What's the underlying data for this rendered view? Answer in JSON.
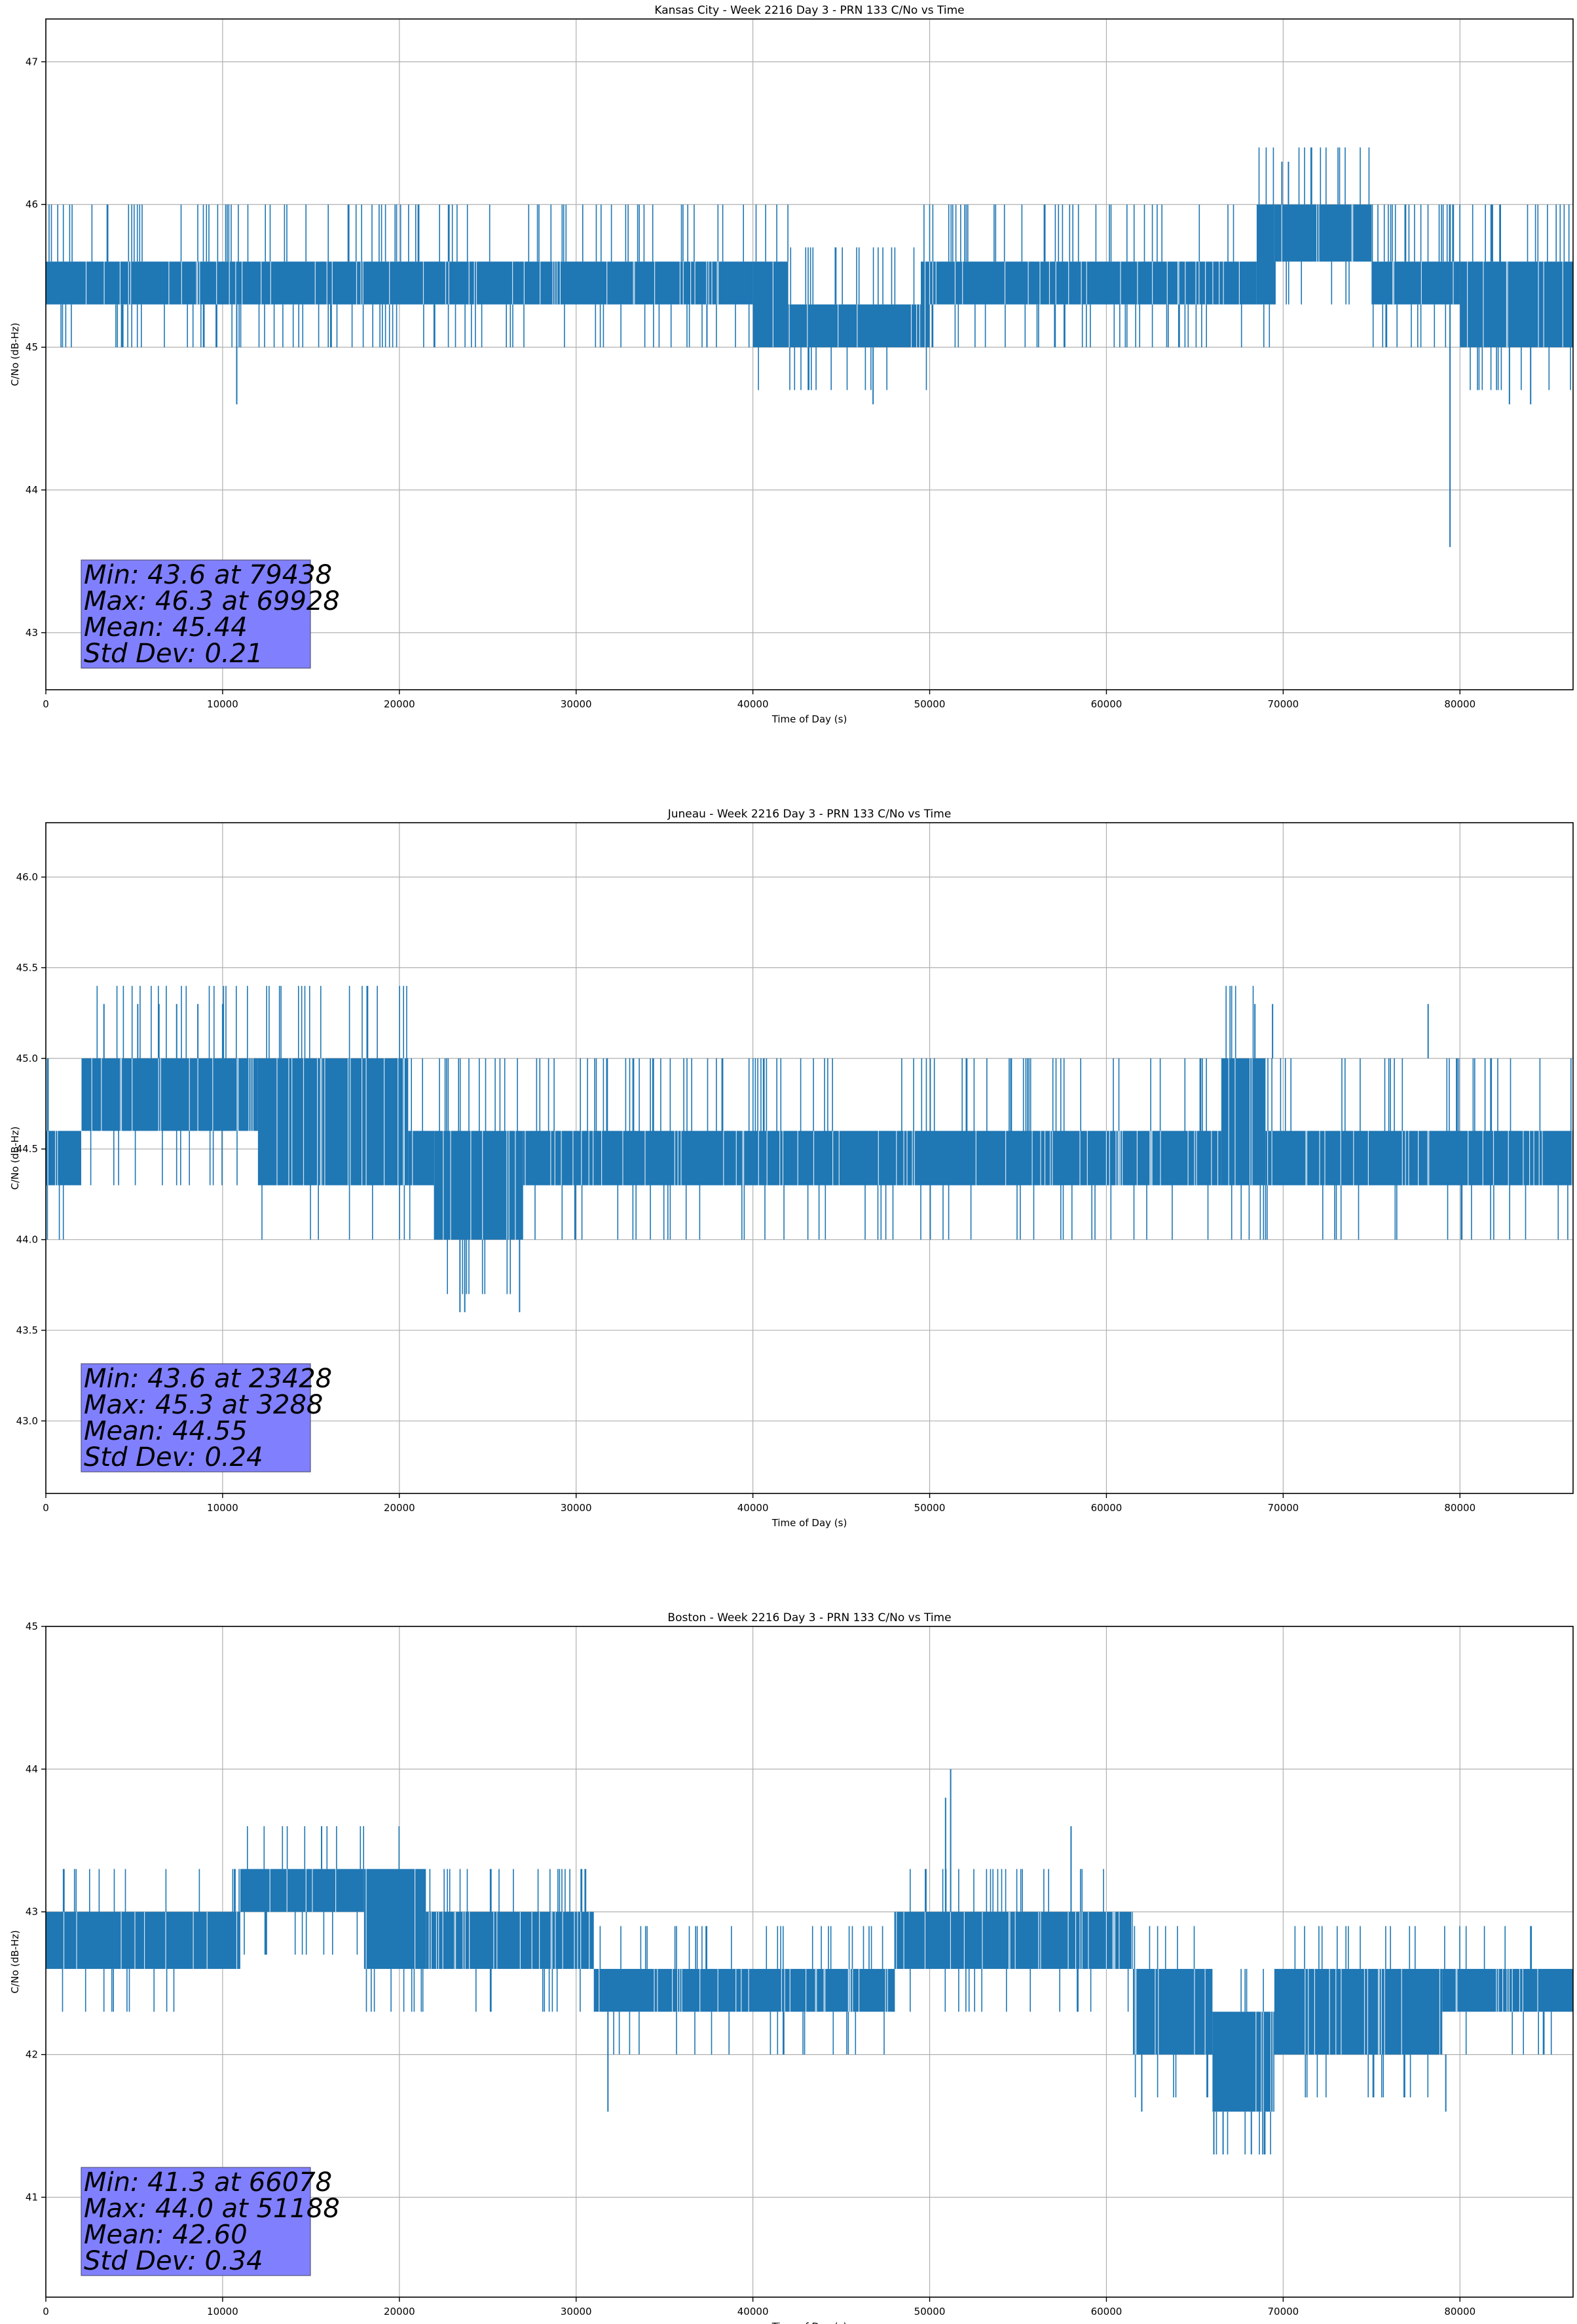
{
  "chart_data": [
    {
      "type": "line",
      "title": "Kansas City - Week 2216 Day 3 - PRN 133 C/No vs Time",
      "xlabel": "Time of Day (s)",
      "ylabel": "C/No (dB-Hz)",
      "xlim": [
        0,
        86400
      ],
      "ylim": [
        42.6,
        47.3
      ],
      "xticks": [
        0,
        10000,
        20000,
        30000,
        40000,
        50000,
        60000,
        70000,
        80000
      ],
      "yticks": [
        43,
        44,
        45,
        46,
        47
      ],
      "ytick_labels": [
        "43",
        "44",
        "45",
        "46",
        "47"
      ],
      "grid": true,
      "color": "#1f77b4",
      "bands": [
        {
          "x0": 0,
          "x1": 40000,
          "lo": 45.3,
          "hi": 45.6
        },
        {
          "x0": 40000,
          "x1": 42000,
          "lo": 45.0,
          "hi": 45.6
        },
        {
          "x0": 42000,
          "x1": 49500,
          "lo": 45.0,
          "hi": 45.3
        },
        {
          "x0": 49500,
          "x1": 50000,
          "lo": 45.0,
          "hi": 45.6
        },
        {
          "x0": 50000,
          "x1": 68500,
          "lo": 45.3,
          "hi": 45.6
        },
        {
          "x0": 68500,
          "x1": 69500,
          "lo": 45.3,
          "hi": 46.0
        },
        {
          "x0": 69500,
          "x1": 75000,
          "lo": 45.6,
          "hi": 46.0
        },
        {
          "x0": 75000,
          "x1": 80000,
          "lo": 45.3,
          "hi": 45.6
        },
        {
          "x0": 80000,
          "x1": 86400,
          "lo": 45.0,
          "hi": 45.6
        }
      ],
      "noise": {
        "up": [
          45.6,
          46.0
        ],
        "down": [
          45.3,
          45.0
        ],
        "up_density": 0.35,
        "down_density": 0.3
      },
      "spikes": [
        {
          "x": 10800,
          "y0": 45.3,
          "y1": 44.6
        },
        {
          "x": 46800,
          "y0": 45.0,
          "y1": 44.6
        },
        {
          "x": 79438,
          "y0": 45.3,
          "y1": 43.6
        },
        {
          "x": 69928,
          "y0": 46.0,
          "y1": 46.3
        },
        {
          "x": 70300,
          "y0": 46.0,
          "y1": 46.3
        },
        {
          "x": 37400,
          "y0": 45.3,
          "y1": 45.0
        },
        {
          "x": 82800,
          "y0": 45.0,
          "y1": 44.6
        },
        {
          "x": 84000,
          "y0": 45.0,
          "y1": 44.6
        }
      ],
      "stats": [
        "Min: 43.6 at 79438",
        "Max: 46.3 at 69928",
        "Mean: 45.44",
        "Std Dev: 0.21"
      ]
    },
    {
      "type": "line",
      "title": "Juneau - Week 2216 Day 3 - PRN 133 C/No vs Time",
      "xlabel": "Time of Day (s)",
      "ylabel": "C/No (dB-Hz)",
      "xlim": [
        0,
        86400
      ],
      "ylim": [
        42.6,
        46.3
      ],
      "xticks": [
        0,
        10000,
        20000,
        30000,
        40000,
        50000,
        60000,
        70000,
        80000
      ],
      "yticks": [
        43.0,
        43.5,
        44.0,
        44.5,
        45.0,
        45.5,
        46.0
      ],
      "ytick_labels": [
        "43.0",
        "43.5",
        "44.0",
        "44.5",
        "45.0",
        "45.5",
        "46.0"
      ],
      "grid": true,
      "color": "#1f77b4",
      "bands": [
        {
          "x0": 0,
          "x1": 2000,
          "lo": 44.3,
          "hi": 44.6
        },
        {
          "x0": 2000,
          "x1": 12000,
          "lo": 44.6,
          "hi": 45.0
        },
        {
          "x0": 12000,
          "x1": 20500,
          "lo": 44.3,
          "hi": 45.0
        },
        {
          "x0": 20500,
          "x1": 22000,
          "lo": 44.3,
          "hi": 44.6
        },
        {
          "x0": 22000,
          "x1": 27000,
          "lo": 44.0,
          "hi": 44.6
        },
        {
          "x0": 27000,
          "x1": 66500,
          "lo": 44.3,
          "hi": 44.6
        },
        {
          "x0": 66500,
          "x1": 69000,
          "lo": 44.3,
          "hi": 45.0
        },
        {
          "x0": 69000,
          "x1": 86400,
          "lo": 44.3,
          "hi": 44.6
        }
      ],
      "noise": {
        "up": [
          44.6,
          45.0
        ],
        "down": [
          44.3,
          44.0
        ],
        "up_density": 0.3,
        "down_density": 0.2
      },
      "spikes": [
        {
          "x": 23428,
          "y0": 44.0,
          "y1": 43.6
        },
        {
          "x": 23700,
          "y0": 44.0,
          "y1": 43.6
        },
        {
          "x": 26800,
          "y0": 44.0,
          "y1": 43.6
        },
        {
          "x": 3288,
          "y0": 45.0,
          "y1": 45.3
        },
        {
          "x": 5200,
          "y0": 45.0,
          "y1": 45.3
        },
        {
          "x": 6400,
          "y0": 45.0,
          "y1": 45.3
        },
        {
          "x": 7400,
          "y0": 45.0,
          "y1": 45.3
        },
        {
          "x": 8600,
          "y0": 45.0,
          "y1": 45.3
        },
        {
          "x": 10000,
          "y0": 45.0,
          "y1": 45.3
        },
        {
          "x": 68400,
          "y0": 45.0,
          "y1": 45.3
        },
        {
          "x": 69400,
          "y0": 45.0,
          "y1": 45.3
        },
        {
          "x": 78200,
          "y0": 45.0,
          "y1": 45.3
        }
      ],
      "stats": [
        "Min: 43.6 at 23428",
        "Max: 45.3 at 3288",
        "Mean: 44.55",
        "Std Dev: 0.24"
      ]
    },
    {
      "type": "line",
      "title": "Boston - Week 2216 Day 3 - PRN 133 C/No vs Time",
      "xlabel": "Time of Day (s)",
      "ylabel": "C/No (dB-Hz)",
      "xlim": [
        0,
        86400
      ],
      "ylim": [
        40.3,
        45.0
      ],
      "xticks": [
        0,
        10000,
        20000,
        30000,
        40000,
        50000,
        60000,
        70000,
        80000
      ],
      "yticks": [
        41,
        42,
        43,
        44,
        45
      ],
      "ytick_labels": [
        "41",
        "42",
        "43",
        "44",
        "45"
      ],
      "grid": true,
      "color": "#1f77b4",
      "bands": [
        {
          "x0": 0,
          "x1": 11000,
          "lo": 42.6,
          "hi": 43.0
        },
        {
          "x0": 11000,
          "x1": 18000,
          "lo": 43.0,
          "hi": 43.3
        },
        {
          "x0": 18000,
          "x1": 21500,
          "lo": 42.6,
          "hi": 43.3
        },
        {
          "x0": 21500,
          "x1": 31000,
          "lo": 42.6,
          "hi": 43.0
        },
        {
          "x0": 31000,
          "x1": 48000,
          "lo": 42.3,
          "hi": 42.6
        },
        {
          "x0": 48000,
          "x1": 61500,
          "lo": 42.6,
          "hi": 43.0
        },
        {
          "x0": 61500,
          "x1": 66000,
          "lo": 42.0,
          "hi": 42.6
        },
        {
          "x0": 66000,
          "x1": 69500,
          "lo": 41.6,
          "hi": 42.3
        },
        {
          "x0": 69500,
          "x1": 79000,
          "lo": 42.0,
          "hi": 42.6
        },
        {
          "x0": 79000,
          "x1": 86400,
          "lo": 42.3,
          "hi": 42.6
        }
      ],
      "noise": {
        "up": [
          43.0,
          43.3
        ],
        "down": [
          42.6,
          42.3
        ],
        "up_density": 0.25,
        "down_density": 0.25
      },
      "spikes": [
        {
          "x": 51188,
          "y0": 43.0,
          "y1": 44.0
        },
        {
          "x": 50900,
          "y0": 43.0,
          "y1": 43.8
        },
        {
          "x": 15600,
          "y0": 43.3,
          "y1": 43.6
        },
        {
          "x": 58000,
          "y0": 43.0,
          "y1": 43.6
        },
        {
          "x": 31800,
          "y0": 42.3,
          "y1": 41.6
        },
        {
          "x": 66078,
          "y0": 41.6,
          "y1": 41.3
        },
        {
          "x": 66600,
          "y0": 41.6,
          "y1": 41.3
        },
        {
          "x": 68200,
          "y0": 41.6,
          "y1": 41.3
        },
        {
          "x": 79200,
          "y0": 42.0,
          "y1": 41.6
        },
        {
          "x": 62000,
          "y0": 42.0,
          "y1": 41.6
        }
      ],
      "stats": [
        "Min: 41.3 at 66078",
        "Max: 44.0 at 51188",
        "Mean: 42.60",
        "Std Dev: 0.34"
      ]
    }
  ]
}
